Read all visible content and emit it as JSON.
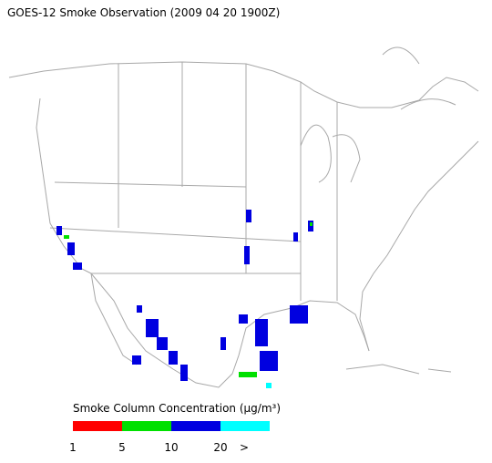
{
  "title": "GOES-12 Smoke Observation (2009 04 20  1900Z)",
  "legend": {
    "label": "Smoke Column Concentration (μg/m³)",
    "colors": [
      "#ff0000",
      "#00e000",
      "#0000e0",
      "#00ffff"
    ],
    "ticks": [
      "1",
      "5",
      "10",
      "20",
      ">"
    ]
  }
}
